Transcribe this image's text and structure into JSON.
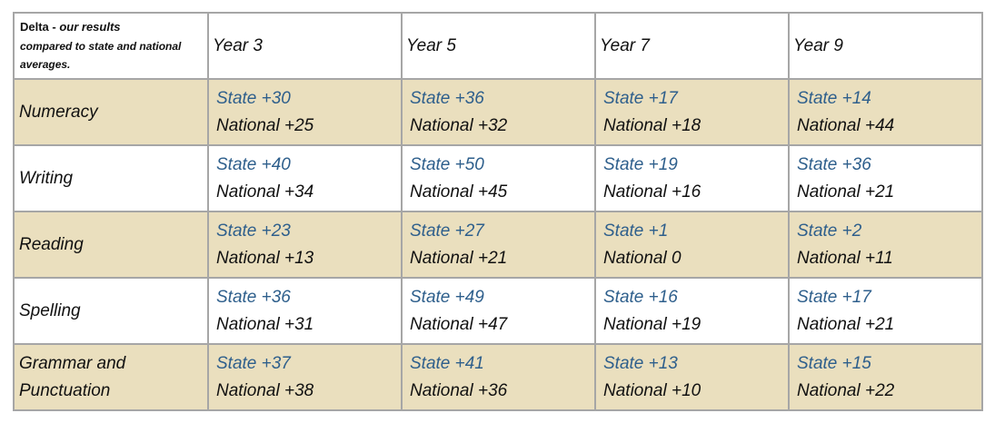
{
  "header": {
    "corner": {
      "bold": "Delta - ",
      "italic": "our results",
      "rest": "compared to state and national averages."
    },
    "years": [
      "Year 3",
      "Year 5",
      "Year 7",
      "Year 9"
    ]
  },
  "rows": [
    {
      "subject": "Numeracy",
      "shaded": true,
      "cells": [
        {
          "state": "State +30",
          "national": "National +25"
        },
        {
          "state": "State +36",
          "national": "National +32"
        },
        {
          "state": "State +17",
          "national": "National +18"
        },
        {
          "state": "State +14",
          "national": "National +44"
        }
      ]
    },
    {
      "subject": "Writing",
      "shaded": false,
      "cells": [
        {
          "state": "State +40",
          "national": "National +34"
        },
        {
          "state": "State +50",
          "national": "National +45"
        },
        {
          "state": "State +19",
          "national": "National +16"
        },
        {
          "state": "State +36",
          "national": "National +21"
        }
      ]
    },
    {
      "subject": "Reading",
      "shaded": true,
      "cells": [
        {
          "state": "State +23",
          "national": "National +13"
        },
        {
          "state": "State +27",
          "national": "National +21"
        },
        {
          "state": "State +1",
          "national": "National 0"
        },
        {
          "state": "State +2",
          "national": "National +11"
        }
      ]
    },
    {
      "subject": "Spelling",
      "shaded": false,
      "cells": [
        {
          "state": "State +36",
          "national": "National +31"
        },
        {
          "state": "State +49",
          "national": "National +47"
        },
        {
          "state": "State +16",
          "national": "National +19"
        },
        {
          "state": "State +17",
          "national": "National +21"
        }
      ]
    },
    {
      "subject": "Grammar and Punctuation",
      "shaded": true,
      "cells": [
        {
          "state": "State +37",
          "national": "National +38"
        },
        {
          "state": "State +41",
          "national": "National +36"
        },
        {
          "state": "State +13",
          "national": "National +10"
        },
        {
          "state": "State +15",
          "national": "National +22"
        }
      ]
    }
  ],
  "colors": {
    "shaded_row": "#eadfbe",
    "state_text": "#2e5f8c",
    "national_text": "#111111",
    "border": "#a6a6a6"
  }
}
